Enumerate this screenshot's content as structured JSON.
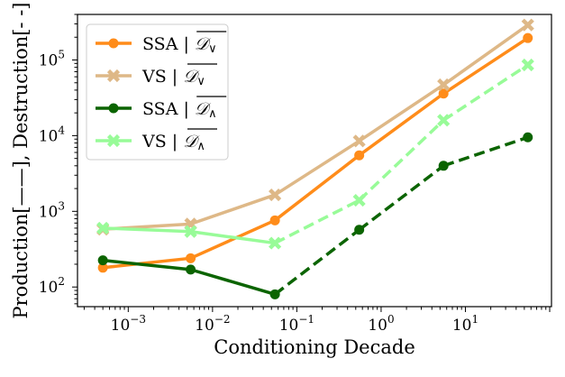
{
  "chart_data": {
    "type": "line",
    "x_scale": "log",
    "y_scale": "log",
    "xlabel": "Conditioning Decade",
    "ylabel": "Production[——],  Destruction[- -]",
    "xlim": [
      0.00025,
      105
    ],
    "ylim": [
      55,
      400000
    ],
    "x_ticks": [
      {
        "value": 0.001,
        "base": "10",
        "exp": "−3"
      },
      {
        "value": 0.01,
        "base": "10",
        "exp": "−2"
      },
      {
        "value": 0.1,
        "base": "10",
        "exp": "−1"
      },
      {
        "value": 1,
        "base": "10",
        "exp": "0"
      },
      {
        "value": 10,
        "base": "10",
        "exp": "1"
      }
    ],
    "y_ticks": [
      {
        "value": 100,
        "base": "10",
        "exp": "2"
      },
      {
        "value": 1000,
        "base": "10",
        "exp": "3"
      },
      {
        "value": 10000,
        "base": "10",
        "exp": "4"
      },
      {
        "value": 100000,
        "base": "10",
        "exp": "5"
      }
    ],
    "x": [
      0.0005,
      0.0055,
      0.055,
      0.55,
      5.5,
      55
    ],
    "series": [
      {
        "name": "SSA | D̅∨",
        "label_main": "SSA | ",
        "label_sub": "∨",
        "values": [
          180,
          240,
          760,
          5500,
          36000,
          195000
        ],
        "color": "#ff8c1a",
        "marker": "circle",
        "dash": "solid",
        "dash_from_index": null
      },
      {
        "name": "VS | D̅∨",
        "label_main": "VS | ",
        "label_sub": "∨",
        "values": [
          580,
          680,
          1650,
          8500,
          47000,
          290000
        ],
        "color": "#deb887",
        "marker": "x",
        "dash": "solid",
        "dash_from_index": null
      },
      {
        "name": "SSA | D̅∧",
        "label_main": "SSA | ",
        "label_sub": "∧",
        "values": [
          225,
          170,
          80,
          570,
          4000,
          9500
        ],
        "color": "#0b6400",
        "marker": "circle",
        "dash": "solid",
        "dash_from_index": 2
      },
      {
        "name": "VS | D̅∧",
        "label_main": "VS | ",
        "label_sub": "∧",
        "values": [
          600,
          540,
          380,
          1400,
          16000,
          86000
        ],
        "color": "#98fb98",
        "marker": "x",
        "dash": "solid",
        "dash_from_index": 2
      }
    ],
    "legend_position": "top-left",
    "grid": false
  }
}
